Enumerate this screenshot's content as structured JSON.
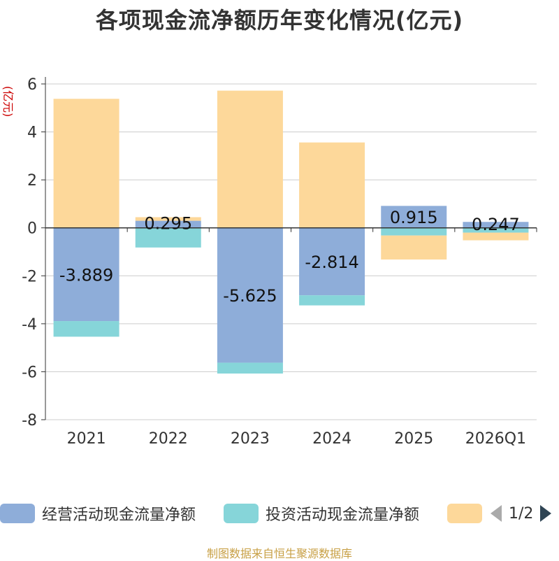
{
  "title": "各项现金流净额历年变化情况(亿元)",
  "source": "制图数据来自恒生聚源数据库",
  "chart_data": {
    "type": "bar",
    "stacked": true,
    "title": "各项现金流净额历年变化情况(亿元)",
    "ylabel": "(亿元)",
    "ylim": [
      -8,
      6
    ],
    "yticks": [
      6,
      4,
      2,
      0,
      -2,
      -4,
      -6,
      -8
    ],
    "categories": [
      "2021",
      "2022",
      "2023",
      "2024",
      "2025",
      "2026Q1"
    ],
    "series": [
      {
        "name": "经营活动现金流量净额",
        "color": "#8eadd9",
        "values": [
          -3.889,
          0.295,
          -5.625,
          -2.814,
          0.915,
          0.247
        ]
      },
      {
        "name": "投资活动现金流量净额",
        "color": "#86d5d9",
        "values": [
          -0.65,
          -0.82,
          -0.45,
          -0.42,
          -0.32,
          -0.2
        ]
      },
      {
        "name": "",
        "color": "#fdd89a",
        "values": [
          5.38,
          0.15,
          5.72,
          3.56,
          -1.0,
          -0.32
        ]
      }
    ],
    "data_labels": [
      "-3.889",
      "0.295",
      "-5.625",
      "-2.814",
      "0.915",
      "0.247"
    ]
  },
  "legend": {
    "items": [
      {
        "label": "经营活动现金流量净额",
        "color": "#8eadd9"
      },
      {
        "label": "投资活动现金流量净额",
        "color": "#86d5d9"
      },
      {
        "label": "",
        "color": "#fdd89a"
      }
    ],
    "page": "1/2",
    "prev_icon": "triangle-left-icon",
    "next_icon": "triangle-right-icon",
    "prev_color": "#aaaaaa",
    "next_color": "#2f4554"
  }
}
